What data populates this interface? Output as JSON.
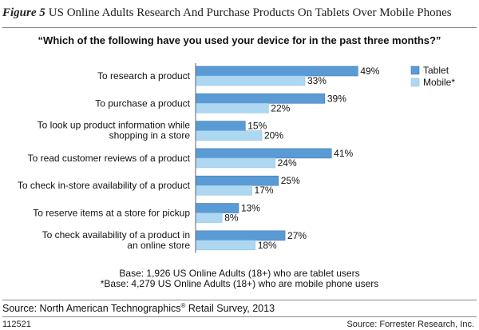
{
  "figure": {
    "number": "Figure 5",
    "title": "US Online Adults Research And Purchase Products On Tablets Over Mobile Phones"
  },
  "chart_data": {
    "type": "bar",
    "orientation": "horizontal",
    "title": "“Which of the following have you used your device for in the past three months?”",
    "categories": [
      [
        "To research a product"
      ],
      [
        "To purchase a product"
      ],
      [
        "To look up product information while",
        "shopping in a store"
      ],
      [
        "To read customer reviews of a product"
      ],
      [
        "To check in-store availability of a product"
      ],
      [
        "To reserve items at a store for pickup"
      ],
      [
        "To check availability of a product in",
        "an online store"
      ]
    ],
    "series": [
      {
        "name": "Tablet",
        "color": "#5b9bd5",
        "values": [
          49,
          39,
          15,
          41,
          25,
          13,
          27
        ]
      },
      {
        "name": "Mobile*",
        "color": "#aed8f2",
        "values": [
          33,
          22,
          20,
          24,
          17,
          8,
          18
        ]
      }
    ],
    "value_suffix": "%",
    "xlim": [
      0,
      100
    ],
    "grid": false,
    "legend_position": "top-right"
  },
  "notes": {
    "base_line1": "Base: 1,926 US Online Adults (18+) who are tablet users",
    "base_line2": "*Base: 4,279 US Online Adults (18+) who are mobile phone users"
  },
  "source": {
    "prefix": "Source: North American Technographics",
    "registered_mark": "®",
    "suffix": " Retail Survey, 2013"
  },
  "footer": {
    "figure_id": "112521",
    "copyright": "Source: Forrester Research, Inc."
  }
}
